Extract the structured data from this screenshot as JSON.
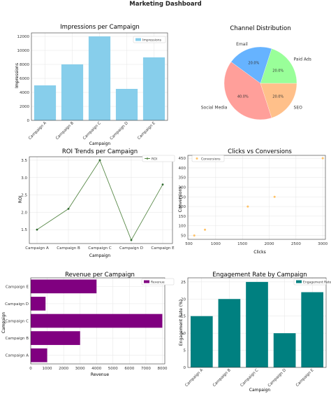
{
  "dashboard": {
    "title": "Marketing Dashboard"
  },
  "colors": {
    "impressions_bar": "#87ceeb",
    "roi_line": "#5a8a4a",
    "conversions_point": "#ffc266",
    "revenue_bar": "#800080",
    "engagement_bar": "#008080",
    "pie": [
      "#ff9f9a",
      "#ffc08a",
      "#99ff99",
      "#66b3ff"
    ]
  },
  "chart_data": [
    {
      "id": "impressions",
      "type": "bar",
      "title": "Impressions per Campaign",
      "xlabel": "Campaign",
      "ylabel": "Impressions",
      "categories": [
        "Campaign A",
        "Campaign B",
        "Campaign C",
        "Campaign D",
        "Campaign E"
      ],
      "series": [
        {
          "name": "Impressions",
          "values": [
            5000,
            8000,
            12000,
            4500,
            9000
          ]
        }
      ],
      "ylim": [
        0,
        12500
      ],
      "yticks": [
        0,
        2000,
        4000,
        6000,
        8000,
        10000,
        12000
      ],
      "grid": true,
      "legend": "top-right"
    },
    {
      "id": "channels",
      "type": "pie",
      "title": "Channel Distribution",
      "labels": [
        "Social Media",
        "SEO",
        "Paid Ads",
        "Email"
      ],
      "values": [
        40.0,
        20.0,
        20.0,
        20.0
      ],
      "value_labels": [
        "40.0%",
        "20.0%",
        "20.0%",
        "20.0%"
      ]
    },
    {
      "id": "roi",
      "type": "line",
      "title": "ROI Trends per Campaign",
      "xlabel": "Campaign",
      "ylabel": "ROI",
      "categories": [
        "Campaign A",
        "Campaign B",
        "Campaign C",
        "Campaign D",
        "Campaign E"
      ],
      "series": [
        {
          "name": "ROI",
          "values": [
            1.5,
            2.1,
            3.5,
            1.2,
            2.8
          ]
        }
      ],
      "ylim": [
        1.1,
        3.6
      ],
      "yticks": [
        1.5,
        2.0,
        2.5,
        3.0,
        3.5
      ],
      "ytick_labels": [
        "1.5",
        "2.0",
        "2.5",
        "3.0",
        "3.5"
      ],
      "grid": true,
      "legend": "top-right"
    },
    {
      "id": "clicks",
      "type": "scatter",
      "title": "Clicks vs Conversions",
      "xlabel": "Clicks",
      "ylabel": "Conversions",
      "series": [
        {
          "name": "Conversions",
          "x": [
            600,
            800,
            1600,
            2100,
            3000
          ],
          "y": [
            50,
            80,
            200,
            250,
            450
          ]
        }
      ],
      "xlim": [
        480,
        3050
      ],
      "ylim": [
        30,
        465
      ],
      "xticks": [
        500,
        1000,
        1500,
        2000,
        2500,
        3000
      ],
      "yticks": [
        50,
        100,
        150,
        200,
        250,
        300,
        350,
        400,
        450
      ],
      "grid": true,
      "legend": "top-left"
    },
    {
      "id": "revenue",
      "type": "bar",
      "orientation": "horizontal",
      "title": "Revenue per Campaign",
      "xlabel": "Revenue",
      "ylabel": "Campaign",
      "categories": [
        "Campaign A",
        "Campaign B",
        "Campaign C",
        "Campaign D",
        "Campaign E"
      ],
      "series": [
        {
          "name": "Revenue",
          "values": [
            1000,
            3000,
            8000,
            900,
            4000
          ]
        }
      ],
      "xlim": [
        0,
        8150
      ],
      "xticks": [
        0,
        1000,
        2000,
        3000,
        4000,
        5000,
        6000,
        7000,
        8000
      ],
      "grid": true,
      "legend": "top-right"
    },
    {
      "id": "engagement",
      "type": "bar",
      "title": "Engagement Rate by Campaign",
      "xlabel": "Campaign",
      "ylabel": "Engagement Rate (%)",
      "categories": [
        "Campaign A",
        "Campaign B",
        "Campaign C",
        "Campaign D",
        "Campaign E"
      ],
      "series": [
        {
          "name": "Engagement Rate",
          "values": [
            15,
            20,
            25,
            10,
            22
          ]
        }
      ],
      "ylim": [
        0,
        26.2
      ],
      "yticks": [
        0,
        5,
        10,
        15,
        20,
        25
      ],
      "grid": true,
      "legend": "top-right"
    }
  ]
}
